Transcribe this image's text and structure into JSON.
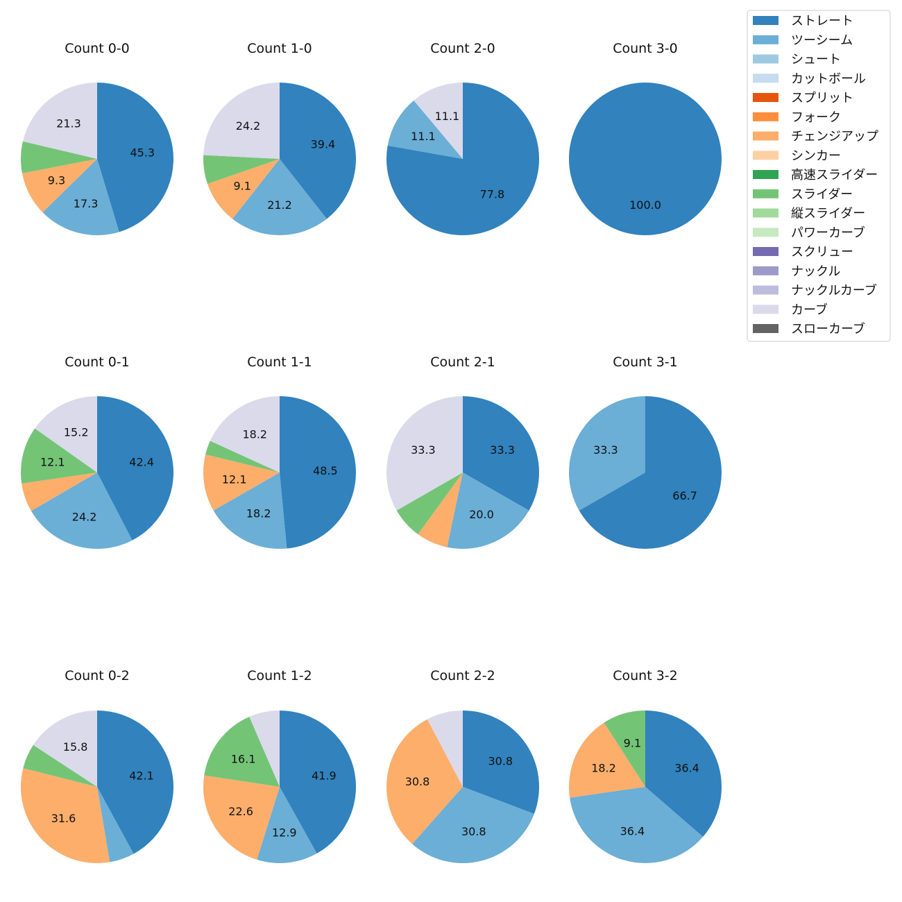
{
  "chart_data": {
    "type": "pie",
    "legend": {
      "placement": "top-right",
      "entries": [
        {
          "name": "ストレート",
          "color": "#3182bd"
        },
        {
          "name": "ツーシーム",
          "color": "#6baed6"
        },
        {
          "name": "シュート",
          "color": "#9ecae1"
        },
        {
          "name": "カットボール",
          "color": "#c6dbef"
        },
        {
          "name": "スプリット",
          "color": "#e6550d"
        },
        {
          "name": "フォーク",
          "color": "#fd8d3c"
        },
        {
          "name": "チェンジアップ",
          "color": "#fdae6b"
        },
        {
          "name": "シンカー",
          "color": "#fdd0a2"
        },
        {
          "name": "高速スライダー",
          "color": "#31a354"
        },
        {
          "name": "スライダー",
          "color": "#74c476"
        },
        {
          "name": "縦スライダー",
          "color": "#a1d99b"
        },
        {
          "name": "パワーカーブ",
          "color": "#c7e9c0"
        },
        {
          "name": "スクリュー",
          "color": "#756bb1"
        },
        {
          "name": "ナックル",
          "color": "#9e9ac8"
        },
        {
          "name": "ナックルカーブ",
          "color": "#bcbddc"
        },
        {
          "name": "カーブ",
          "color": "#dadaeb"
        },
        {
          "name": "スローカーブ",
          "color": "#636363"
        }
      ]
    },
    "charts": [
      {
        "title": "Count 0-0",
        "slices": [
          {
            "pitch": "ストレート",
            "value": 45.3,
            "label": "45.3"
          },
          {
            "pitch": "ツーシーム",
            "value": 17.3,
            "label": "17.3"
          },
          {
            "pitch": "チェンジアップ",
            "value": 9.3,
            "label": "9.3"
          },
          {
            "pitch": "スライダー",
            "value": 6.7,
            "label": ""
          },
          {
            "pitch": "カーブ",
            "value": 21.3,
            "label": "21.3"
          }
        ]
      },
      {
        "title": "Count 1-0",
        "slices": [
          {
            "pitch": "ストレート",
            "value": 39.4,
            "label": "39.4"
          },
          {
            "pitch": "ツーシーム",
            "value": 21.2,
            "label": "21.2"
          },
          {
            "pitch": "チェンジアップ",
            "value": 9.1,
            "label": "9.1"
          },
          {
            "pitch": "スライダー",
            "value": 6.1,
            "label": ""
          },
          {
            "pitch": "カーブ",
            "value": 24.2,
            "label": "24.2"
          }
        ]
      },
      {
        "title": "Count 2-0",
        "slices": [
          {
            "pitch": "ストレート",
            "value": 77.8,
            "label": "77.8"
          },
          {
            "pitch": "ツーシーム",
            "value": 11.1,
            "label": "11.1"
          },
          {
            "pitch": "カーブ",
            "value": 11.1,
            "label": "11.1"
          }
        ]
      },
      {
        "title": "Count 3-0",
        "slices": [
          {
            "pitch": "ストレート",
            "value": 100.0,
            "label": "100.0"
          }
        ]
      },
      {
        "title": "Count 0-1",
        "slices": [
          {
            "pitch": "ストレート",
            "value": 42.4,
            "label": "42.4"
          },
          {
            "pitch": "ツーシーム",
            "value": 24.2,
            "label": "24.2"
          },
          {
            "pitch": "チェンジアップ",
            "value": 6.1,
            "label": ""
          },
          {
            "pitch": "スライダー",
            "value": 12.1,
            "label": "12.1"
          },
          {
            "pitch": "カーブ",
            "value": 15.2,
            "label": "15.2"
          }
        ]
      },
      {
        "title": "Count 1-1",
        "slices": [
          {
            "pitch": "ストレート",
            "value": 48.5,
            "label": "48.5"
          },
          {
            "pitch": "ツーシーム",
            "value": 18.2,
            "label": "18.2"
          },
          {
            "pitch": "チェンジアップ",
            "value": 12.1,
            "label": "12.1"
          },
          {
            "pitch": "スライダー",
            "value": 3.0,
            "label": ""
          },
          {
            "pitch": "カーブ",
            "value": 18.2,
            "label": "18.2"
          }
        ]
      },
      {
        "title": "Count 2-1",
        "slices": [
          {
            "pitch": "ストレート",
            "value": 33.3,
            "label": "33.3"
          },
          {
            "pitch": "ツーシーム",
            "value": 20.0,
            "label": "20.0"
          },
          {
            "pitch": "チェンジアップ",
            "value": 6.7,
            "label": ""
          },
          {
            "pitch": "スライダー",
            "value": 6.7,
            "label": ""
          },
          {
            "pitch": "カーブ",
            "value": 33.3,
            "label": "33.3"
          }
        ]
      },
      {
        "title": "Count 3-1",
        "slices": [
          {
            "pitch": "ストレート",
            "value": 66.7,
            "label": "66.7"
          },
          {
            "pitch": "ツーシーム",
            "value": 33.3,
            "label": "33.3"
          }
        ]
      },
      {
        "title": "Count 0-2",
        "slices": [
          {
            "pitch": "ストレート",
            "value": 42.1,
            "label": "42.1"
          },
          {
            "pitch": "ツーシーム",
            "value": 5.3,
            "label": ""
          },
          {
            "pitch": "チェンジアップ",
            "value": 31.6,
            "label": "31.6"
          },
          {
            "pitch": "スライダー",
            "value": 5.3,
            "label": ""
          },
          {
            "pitch": "カーブ",
            "value": 15.8,
            "label": "15.8"
          }
        ]
      },
      {
        "title": "Count 1-2",
        "slices": [
          {
            "pitch": "ストレート",
            "value": 41.9,
            "label": "41.9"
          },
          {
            "pitch": "ツーシーム",
            "value": 12.9,
            "label": "12.9"
          },
          {
            "pitch": "チェンジアップ",
            "value": 22.6,
            "label": "22.6"
          },
          {
            "pitch": "スライダー",
            "value": 16.1,
            "label": "16.1"
          },
          {
            "pitch": "カーブ",
            "value": 6.5,
            "label": ""
          }
        ]
      },
      {
        "title": "Count 2-2",
        "slices": [
          {
            "pitch": "ストレート",
            "value": 30.8,
            "label": "30.8"
          },
          {
            "pitch": "ツーシーム",
            "value": 30.8,
            "label": "30.8"
          },
          {
            "pitch": "チェンジアップ",
            "value": 30.8,
            "label": "30.8"
          },
          {
            "pitch": "カーブ",
            "value": 7.7,
            "label": ""
          }
        ]
      },
      {
        "title": "Count 3-2",
        "slices": [
          {
            "pitch": "ストレート",
            "value": 36.4,
            "label": "36.4"
          },
          {
            "pitch": "ツーシーム",
            "value": 36.4,
            "label": "36.4"
          },
          {
            "pitch": "チェンジアップ",
            "value": 18.2,
            "label": "18.2"
          },
          {
            "pitch": "スライダー",
            "value": 9.1,
            "label": "9.1"
          }
        ]
      }
    ]
  }
}
